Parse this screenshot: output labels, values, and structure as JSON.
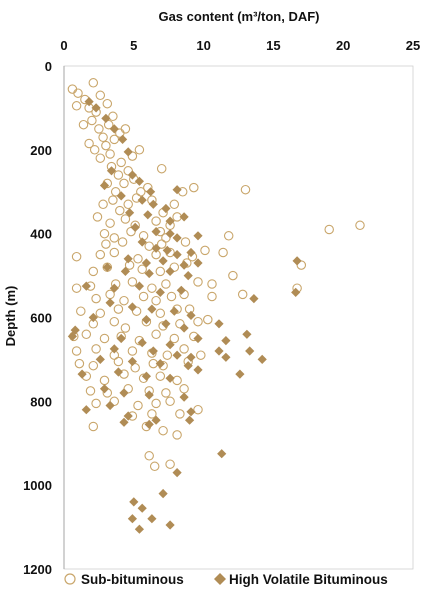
{
  "chart_data": {
    "type": "scatter",
    "title": "",
    "xlabel": "Gas content (m³/ton, DAF)",
    "ylabel": "Depth (m)",
    "x_axis_position": "top",
    "y_axis_inverted": true,
    "xlim": [
      0,
      25
    ],
    "ylim": [
      0,
      1200
    ],
    "xticks": [
      0,
      5,
      10,
      15,
      20,
      25
    ],
    "yticks": [
      0,
      200,
      400,
      600,
      800,
      1000,
      1200
    ],
    "grid": false,
    "legend_position": "bottom",
    "colors": {
      "sub": "#C9A66B",
      "hvb": "#B08C55"
    },
    "series": [
      {
        "name": "Sub-bituminous",
        "marker": "open-circle",
        "points": [
          [
            0.6,
            55
          ],
          [
            1.0,
            65
          ],
          [
            1.5,
            80
          ],
          [
            2.1,
            40
          ],
          [
            2.6,
            70
          ],
          [
            0.9,
            95
          ],
          [
            1.8,
            100
          ],
          [
            2.3,
            110
          ],
          [
            3.1,
            90
          ],
          [
            2.0,
            130
          ],
          [
            1.4,
            140
          ],
          [
            2.5,
            150
          ],
          [
            3.2,
            140
          ],
          [
            3.5,
            120
          ],
          [
            2.8,
            170
          ],
          [
            1.8,
            185
          ],
          [
            2.2,
            200
          ],
          [
            3.0,
            190
          ],
          [
            3.6,
            175
          ],
          [
            4.0,
            160
          ],
          [
            4.4,
            150
          ],
          [
            2.6,
            220
          ],
          [
            3.3,
            210
          ],
          [
            4.1,
            230
          ],
          [
            4.9,
            215
          ],
          [
            5.4,
            200
          ],
          [
            3.4,
            240
          ],
          [
            3.9,
            260
          ],
          [
            4.6,
            250
          ],
          [
            3.1,
            280
          ],
          [
            3.7,
            300
          ],
          [
            4.3,
            280
          ],
          [
            5.0,
            270
          ],
          [
            5.5,
            300
          ],
          [
            6.0,
            290
          ],
          [
            7.0,
            245
          ],
          [
            2.8,
            330
          ],
          [
            3.5,
            320
          ],
          [
            4.0,
            345
          ],
          [
            4.6,
            330
          ],
          [
            5.2,
            315
          ],
          [
            6.3,
            320
          ],
          [
            7.1,
            350
          ],
          [
            7.9,
            330
          ],
          [
            8.5,
            300
          ],
          [
            9.3,
            290
          ],
          [
            13.0,
            295
          ],
          [
            2.4,
            360
          ],
          [
            3.3,
            375
          ],
          [
            4.4,
            365
          ],
          [
            5.1,
            380
          ],
          [
            6.6,
            370
          ],
          [
            7.6,
            380
          ],
          [
            8.1,
            360
          ],
          [
            2.9,
            400
          ],
          [
            3.6,
            410
          ],
          [
            4.8,
            395
          ],
          [
            5.7,
            405
          ],
          [
            6.9,
            395
          ],
          [
            7.3,
            410
          ],
          [
            3.0,
            425
          ],
          [
            4.2,
            420
          ],
          [
            6.1,
            430
          ],
          [
            7.0,
            425
          ],
          [
            8.7,
            420
          ],
          [
            11.8,
            405
          ],
          [
            11.4,
            445
          ],
          [
            19.0,
            390
          ],
          [
            21.2,
            380
          ],
          [
            0.9,
            455
          ],
          [
            2.6,
            450
          ],
          [
            3.6,
            445
          ],
          [
            5.3,
            460
          ],
          [
            6.6,
            450
          ],
          [
            7.6,
            445
          ],
          [
            9.2,
            455
          ],
          [
            10.1,
            440
          ],
          [
            2.1,
            490
          ],
          [
            3.1,
            480
          ],
          [
            4.7,
            475
          ],
          [
            5.6,
            485
          ],
          [
            6.9,
            490
          ],
          [
            7.9,
            480
          ],
          [
            8.8,
            470
          ],
          [
            12.1,
            500
          ],
          [
            0.9,
            530
          ],
          [
            1.9,
            525
          ],
          [
            3.7,
            520
          ],
          [
            4.9,
            515
          ],
          [
            6.3,
            530
          ],
          [
            7.3,
            520
          ],
          [
            9.6,
            515
          ],
          [
            10.6,
            520
          ],
          [
            2.3,
            555
          ],
          [
            3.3,
            545
          ],
          [
            4.3,
            560
          ],
          [
            5.7,
            550
          ],
          [
            6.6,
            560
          ],
          [
            7.7,
            550
          ],
          [
            8.6,
            545
          ],
          [
            10.6,
            550
          ],
          [
            12.8,
            545
          ],
          [
            16.7,
            530
          ],
          [
            17.0,
            475
          ],
          [
            1.2,
            585
          ],
          [
            2.6,
            590
          ],
          [
            3.9,
            580
          ],
          [
            5.2,
            585
          ],
          [
            6.9,
            590
          ],
          [
            8.1,
            580
          ],
          [
            9.0,
            580
          ],
          [
            2.1,
            615
          ],
          [
            3.6,
            610
          ],
          [
            4.4,
            625
          ],
          [
            5.9,
            610
          ],
          [
            7.1,
            620
          ],
          [
            8.3,
            615
          ],
          [
            9.6,
            610
          ],
          [
            10.3,
            605
          ],
          [
            0.7,
            645
          ],
          [
            1.6,
            640
          ],
          [
            2.9,
            650
          ],
          [
            4.1,
            645
          ],
          [
            5.4,
            655
          ],
          [
            6.6,
            640
          ],
          [
            7.9,
            650
          ],
          [
            9.3,
            645
          ],
          [
            0.9,
            680
          ],
          [
            2.3,
            675
          ],
          [
            3.6,
            690
          ],
          [
            4.9,
            680
          ],
          [
            6.3,
            685
          ],
          [
            7.4,
            690
          ],
          [
            8.6,
            675
          ],
          [
            9.8,
            690
          ],
          [
            1.1,
            710
          ],
          [
            2.1,
            715
          ],
          [
            3.9,
            705
          ],
          [
            5.1,
            720
          ],
          [
            6.4,
            710
          ],
          [
            7.1,
            715
          ],
          [
            8.9,
            705
          ],
          [
            1.6,
            740
          ],
          [
            2.9,
            750
          ],
          [
            4.3,
            735
          ],
          [
            5.7,
            745
          ],
          [
            6.9,
            740
          ],
          [
            8.1,
            750
          ],
          [
            1.9,
            775
          ],
          [
            3.1,
            780
          ],
          [
            4.6,
            770
          ],
          [
            6.1,
            775
          ],
          [
            7.3,
            780
          ],
          [
            8.6,
            770
          ],
          [
            2.3,
            805
          ],
          [
            3.6,
            800
          ],
          [
            5.3,
            810
          ],
          [
            6.6,
            805
          ],
          [
            7.6,
            800
          ],
          [
            9.6,
            820
          ],
          [
            4.9,
            835
          ],
          [
            6.3,
            830
          ],
          [
            8.3,
            830
          ],
          [
            2.1,
            860
          ],
          [
            5.9,
            860
          ],
          [
            7.1,
            870
          ],
          [
            8.1,
            880
          ],
          [
            6.1,
            930
          ],
          [
            6.5,
            955
          ],
          [
            7.6,
            950
          ]
        ]
      },
      {
        "name": "High Volatile Bituminous",
        "marker": "filled-diamond",
        "points": [
          [
            1.8,
            85
          ],
          [
            2.3,
            100
          ],
          [
            3.0,
            125
          ],
          [
            3.6,
            150
          ],
          [
            4.2,
            175
          ],
          [
            4.6,
            205
          ],
          [
            3.4,
            250
          ],
          [
            4.9,
            260
          ],
          [
            5.4,
            275
          ],
          [
            2.9,
            285
          ],
          [
            6.2,
            300
          ],
          [
            8.1,
            295
          ],
          [
            4.1,
            310
          ],
          [
            5.6,
            320
          ],
          [
            6.4,
            330
          ],
          [
            7.3,
            340
          ],
          [
            4.7,
            350
          ],
          [
            6.0,
            355
          ],
          [
            7.6,
            370
          ],
          [
            8.6,
            360
          ],
          [
            5.1,
            385
          ],
          [
            6.6,
            395
          ],
          [
            7.6,
            400
          ],
          [
            8.1,
            410
          ],
          [
            9.6,
            405
          ],
          [
            5.6,
            420
          ],
          [
            6.6,
            435
          ],
          [
            7.4,
            440
          ],
          [
            8.1,
            450
          ],
          [
            9.1,
            445
          ],
          [
            4.6,
            460
          ],
          [
            5.9,
            470
          ],
          [
            7.1,
            465
          ],
          [
            8.6,
            475
          ],
          [
            9.6,
            470
          ],
          [
            3.1,
            480
          ],
          [
            4.4,
            490
          ],
          [
            6.1,
            495
          ],
          [
            7.6,
            490
          ],
          [
            8.9,
            500
          ],
          [
            16.7,
            465
          ],
          [
            1.6,
            525
          ],
          [
            3.6,
            530
          ],
          [
            5.4,
            525
          ],
          [
            6.9,
            540
          ],
          [
            8.4,
            535
          ],
          [
            16.6,
            540
          ],
          [
            13.6,
            555
          ],
          [
            3.3,
            565
          ],
          [
            4.9,
            575
          ],
          [
            6.3,
            580
          ],
          [
            7.9,
            585
          ],
          [
            9.1,
            595
          ],
          [
            2.1,
            600
          ],
          [
            5.9,
            605
          ],
          [
            7.3,
            615
          ],
          [
            8.6,
            625
          ],
          [
            11.1,
            615
          ],
          [
            0.8,
            630
          ],
          [
            0.6,
            645
          ],
          [
            4.1,
            650
          ],
          [
            5.6,
            660
          ],
          [
            7.6,
            665
          ],
          [
            9.6,
            650
          ],
          [
            11.6,
            655
          ],
          [
            13.1,
            640
          ],
          [
            3.6,
            675
          ],
          [
            6.4,
            680
          ],
          [
            8.1,
            690
          ],
          [
            9.1,
            695
          ],
          [
            11.1,
            680
          ],
          [
            13.3,
            680
          ],
          [
            2.6,
            700
          ],
          [
            4.9,
            705
          ],
          [
            6.9,
            710
          ],
          [
            8.9,
            715
          ],
          [
            11.6,
            695
          ],
          [
            14.2,
            700
          ],
          [
            1.3,
            735
          ],
          [
            3.9,
            730
          ],
          [
            5.9,
            740
          ],
          [
            7.6,
            745
          ],
          [
            9.6,
            725
          ],
          [
            12.6,
            735
          ],
          [
            2.9,
            770
          ],
          [
            4.3,
            780
          ],
          [
            6.1,
            785
          ],
          [
            8.6,
            790
          ],
          [
            1.6,
            820
          ],
          [
            3.3,
            810
          ],
          [
            4.6,
            835
          ],
          [
            6.6,
            845
          ],
          [
            9.1,
            825
          ],
          [
            4.3,
            850
          ],
          [
            6.1,
            855
          ],
          [
            9.0,
            845
          ],
          [
            11.3,
            925
          ],
          [
            8.1,
            970
          ],
          [
            5.0,
            1040
          ],
          [
            5.6,
            1055
          ],
          [
            7.1,
            1020
          ],
          [
            4.9,
            1080
          ],
          [
            6.3,
            1080
          ],
          [
            7.6,
            1095
          ],
          [
            5.4,
            1105
          ]
        ]
      }
    ]
  }
}
